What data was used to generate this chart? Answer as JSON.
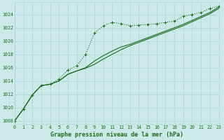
{
  "title": "Graphe pression niveau de la mer (hPa)",
  "background_color": "#cce9e9",
  "grid_color": "#aad4d4",
  "line_color": "#1a6e1a",
  "xlim": [
    0,
    23
  ],
  "ylim": [
    1007.5,
    1025.8
  ],
  "xticks": [
    0,
    1,
    2,
    3,
    4,
    5,
    6,
    7,
    8,
    9,
    10,
    11,
    12,
    13,
    14,
    15,
    16,
    17,
    18,
    19,
    20,
    21,
    22,
    23
  ],
  "yticks": [
    1008,
    1010,
    1012,
    1014,
    1016,
    1018,
    1020,
    1022,
    1024
  ],
  "series1": [
    1008.0,
    1009.8,
    1011.9,
    1013.3,
    1013.5,
    1014.3,
    1015.6,
    1016.3,
    1018.0,
    1021.2,
    1022.3,
    1022.8,
    1022.6,
    1022.3,
    1022.4,
    1022.5,
    1022.6,
    1022.8,
    1023.0,
    1023.7,
    1024.0,
    1024.3,
    1024.9,
    1025.2
  ],
  "series2": [
    1008.0,
    1009.8,
    1011.9,
    1013.3,
    1013.5,
    1014.0,
    1015.0,
    1015.5,
    1016.0,
    1017.0,
    1017.8,
    1018.5,
    1019.1,
    1019.5,
    1020.0,
    1020.5,
    1021.0,
    1021.5,
    1022.0,
    1022.5,
    1023.1,
    1023.7,
    1024.3,
    1025.1
  ],
  "series3": [
    1008.0,
    1009.8,
    1011.9,
    1013.3,
    1013.5,
    1014.0,
    1015.0,
    1015.5,
    1015.9,
    1016.5,
    1017.3,
    1018.0,
    1018.7,
    1019.3,
    1019.8,
    1020.3,
    1020.8,
    1021.3,
    1021.8,
    1022.3,
    1022.9,
    1023.5,
    1024.1,
    1024.9
  ]
}
